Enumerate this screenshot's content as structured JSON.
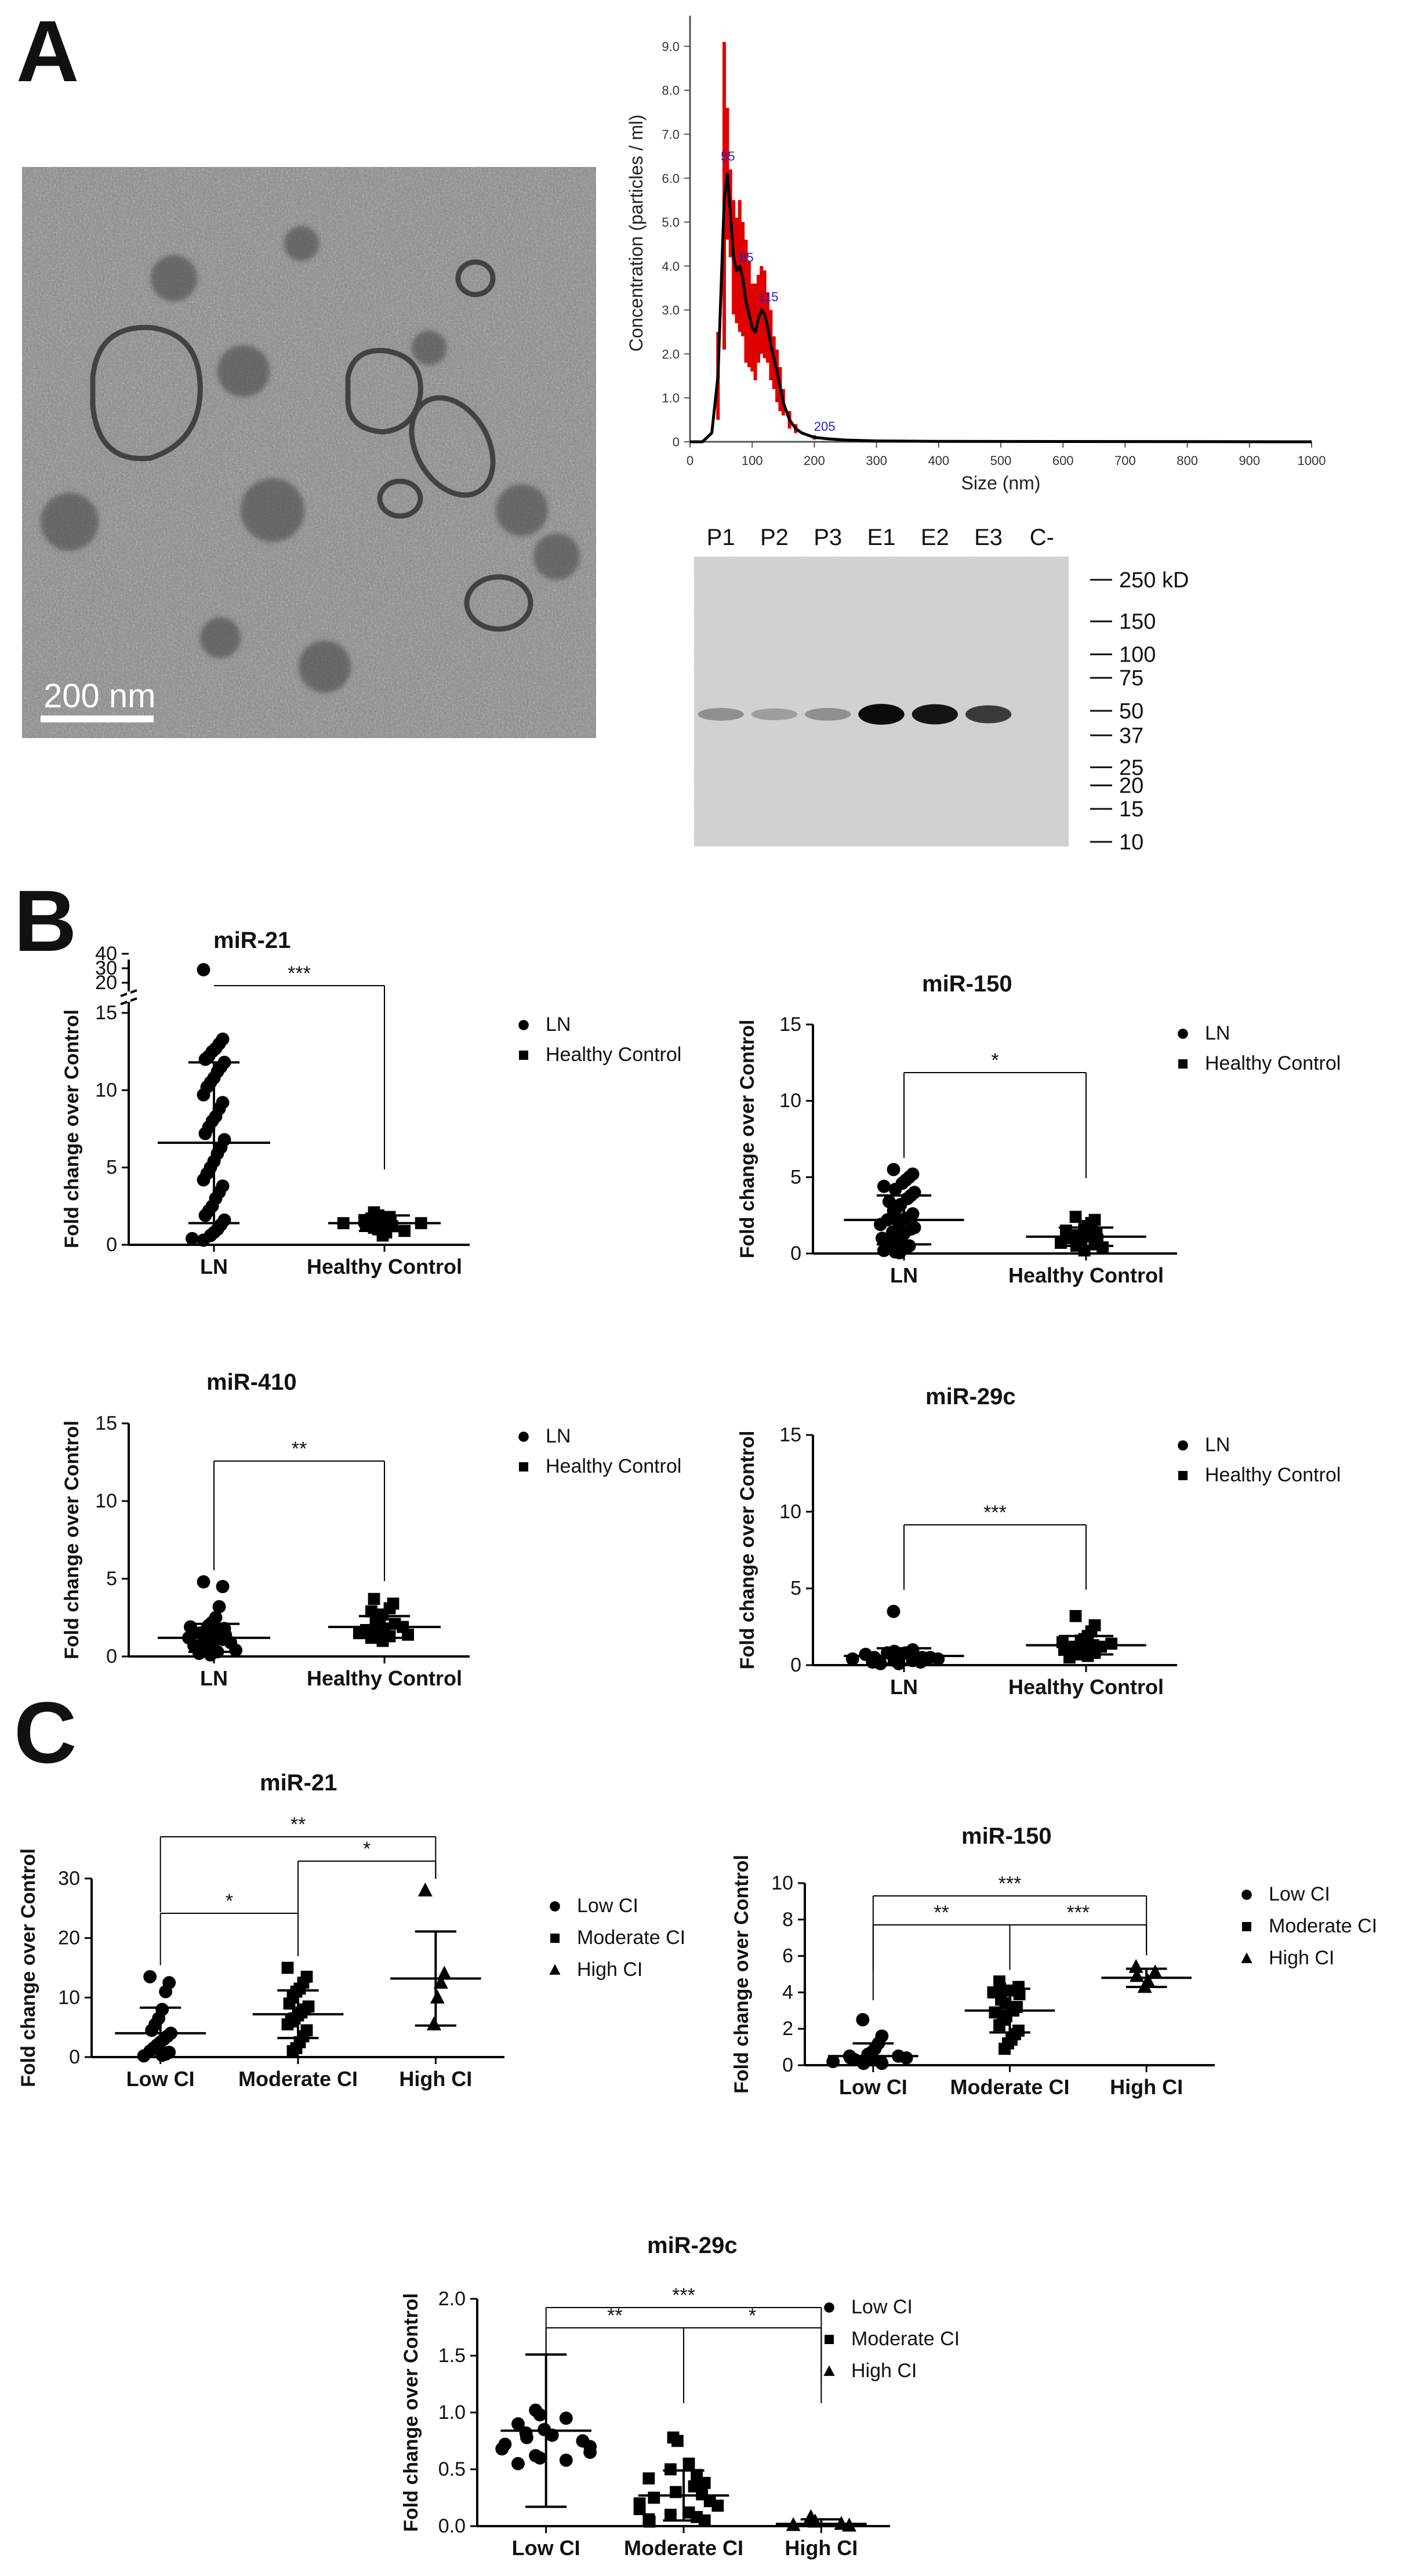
{
  "panels": {
    "A": "A",
    "B": "B",
    "C": "C"
  },
  "tem": {
    "scale_label": "200 nm"
  },
  "western_blot": {
    "lanes": [
      "P1",
      "P2",
      "P3",
      "E1",
      "E2",
      "E3",
      "C-"
    ],
    "markers": [
      "250 kD",
      "150",
      "100",
      "75",
      "50",
      "37",
      "25",
      "20",
      "15",
      "10"
    ],
    "marker_values": [
      250,
      150,
      100,
      75,
      50,
      37,
      25,
      20,
      15,
      10
    ],
    "band_intensity": [
      0.3,
      0.22,
      0.3,
      1.0,
      0.95,
      0.75,
      0.0
    ]
  },
  "chart_data": [
    {
      "id": "nta",
      "type": "line",
      "title": "",
      "xlabel": "Size (nm)",
      "ylabel": "Concentration (particles / ml)",
      "xlim": [
        0,
        1000
      ],
      "ylim": [
        0,
        9.5
      ],
      "xticks": [
        0,
        100,
        200,
        300,
        400,
        500,
        600,
        700,
        800,
        900,
        1000
      ],
      "yticks": [
        0.0,
        1.0,
        2.0,
        3.0,
        4.0,
        5.0,
        6.0,
        7.0,
        8.0,
        9.0
      ],
      "ytick_labels": [
        "0",
        "1.0",
        "2.0",
        "3.0",
        "4.0",
        "5.0",
        "6.0",
        "7.0",
        "8.0",
        "9.0"
      ],
      "line_x": [
        0,
        20,
        35,
        45,
        50,
        55,
        60,
        65,
        70,
        75,
        80,
        85,
        90,
        95,
        100,
        105,
        110,
        115,
        120,
        125,
        130,
        140,
        150,
        160,
        170,
        180,
        190,
        200,
        220,
        250,
        300,
        400,
        1000
      ],
      "line_y": [
        0,
        0,
        0.2,
        1.5,
        3.5,
        5.5,
        6.1,
        5.2,
        4.2,
        3.9,
        4.0,
        3.7,
        3.2,
        2.9,
        2.6,
        2.5,
        2.8,
        3.0,
        2.9,
        2.6,
        2.2,
        1.6,
        0.9,
        0.5,
        0.3,
        0.2,
        0.15,
        0.1,
        0.07,
        0.04,
        0.02,
        0.01,
        0.0
      ],
      "error_bars": [
        {
          "x": 45,
          "y": 1.5,
          "err": 1.0
        },
        {
          "x": 55,
          "y": 5.6,
          "err": 3.5
        },
        {
          "x": 60,
          "y": 6.1,
          "err": 1.5
        },
        {
          "x": 65,
          "y": 5.2,
          "err": 1.0
        },
        {
          "x": 70,
          "y": 4.2,
          "err": 1.3
        },
        {
          "x": 75,
          "y": 3.9,
          "err": 1.2
        },
        {
          "x": 80,
          "y": 4.0,
          "err": 1.5
        },
        {
          "x": 85,
          "y": 3.7,
          "err": 1.3
        },
        {
          "x": 90,
          "y": 3.2,
          "err": 1.4
        },
        {
          "x": 95,
          "y": 2.9,
          "err": 1.2
        },
        {
          "x": 100,
          "y": 2.6,
          "err": 1.0
        },
        {
          "x": 105,
          "y": 2.5,
          "err": 1.1
        },
        {
          "x": 110,
          "y": 2.8,
          "err": 1.0
        },
        {
          "x": 115,
          "y": 3.0,
          "err": 1.0
        },
        {
          "x": 120,
          "y": 2.9,
          "err": 1.0
        },
        {
          "x": 125,
          "y": 2.6,
          "err": 0.8
        },
        {
          "x": 130,
          "y": 2.2,
          "err": 0.8
        },
        {
          "x": 135,
          "y": 1.8,
          "err": 0.6
        },
        {
          "x": 140,
          "y": 1.5,
          "err": 0.6
        },
        {
          "x": 145,
          "y": 1.2,
          "err": 0.5
        },
        {
          "x": 150,
          "y": 0.9,
          "err": 0.3
        },
        {
          "x": 160,
          "y": 0.5,
          "err": 0.2
        },
        {
          "x": 170,
          "y": 0.3,
          "err": 0.1
        },
        {
          "x": 200,
          "y": 0.1,
          "err": 0.05
        }
      ],
      "peak_labels": [
        {
          "x": 55,
          "y": 6.4,
          "label": "55"
        },
        {
          "x": 85,
          "y": 4.1,
          "label": "85"
        },
        {
          "x": 115,
          "y": 3.2,
          "label": "115"
        },
        {
          "x": 205,
          "y": 0.25,
          "label": "205"
        }
      ]
    },
    {
      "id": "b1",
      "type": "scatter",
      "title": "miR-21",
      "ylabel": "Fold change over Control",
      "categories": [
        "LN",
        "Healthy Control"
      ],
      "ylim": [
        0,
        40
      ],
      "axis_break": true,
      "yticks": [
        0,
        5,
        10,
        15,
        20,
        30,
        40
      ],
      "legend": [
        "LN",
        "Healthy Control"
      ],
      "groups": [
        {
          "name": "LN",
          "marker": "circle",
          "mean": 6.6,
          "sd": 5.2,
          "points": [
            29,
            13.3,
            13.0,
            12.7,
            12.5,
            12.2,
            12.0,
            11.8,
            11.5,
            11.2,
            10.8,
            10.5,
            10.2,
            9.7,
            9.2,
            8.8,
            8.3,
            8.0,
            7.6,
            7.2,
            6.8,
            6.3,
            5.9,
            5.4,
            5.0,
            4.6,
            4.2,
            3.8,
            3.4,
            3.0,
            2.5,
            2.2,
            1.9,
            1.6,
            1.3,
            1.0,
            0.8,
            0.6,
            0.4,
            0.3
          ]
        },
        {
          "name": "Healthy Control",
          "marker": "square",
          "mean": 1.4,
          "sd": 0.5,
          "points": [
            2.1,
            1.9,
            1.8,
            1.7,
            1.6,
            1.6,
            1.5,
            1.5,
            1.4,
            1.4,
            1.3,
            1.3,
            1.2,
            1.1,
            1.0,
            0.9,
            0.8,
            0.6
          ]
        }
      ],
      "comparisons": [
        {
          "from": 0,
          "to": 1,
          "label": "***"
        }
      ]
    },
    {
      "id": "b2",
      "type": "scatter",
      "title": "miR-150",
      "ylabel": "Fold change over Control",
      "categories": [
        "LN",
        "Healthy Control"
      ],
      "ylim": [
        0,
        15
      ],
      "yticks": [
        0,
        5,
        10,
        15
      ],
      "legend": [
        "LN",
        "Healthy Control"
      ],
      "groups": [
        {
          "name": "LN",
          "marker": "circle",
          "mean": 2.2,
          "sd": 1.6,
          "points": [
            5.5,
            5.2,
            5.0,
            4.8,
            4.6,
            4.4,
            4.2,
            4.0,
            3.8,
            3.6,
            3.4,
            3.2,
            3.0,
            2.8,
            2.6,
            2.5,
            2.3,
            2.2,
            2.0,
            1.9,
            1.7,
            1.6,
            1.4,
            1.3,
            1.1,
            1.0,
            0.8,
            0.7,
            0.5,
            0.4,
            0.3,
            0.2,
            0.1,
            0.05
          ]
        },
        {
          "name": "Healthy Control",
          "marker": "square",
          "mean": 1.1,
          "sd": 0.6,
          "points": [
            2.4,
            2.2,
            2.0,
            1.8,
            1.6,
            1.5,
            1.4,
            1.3,
            1.2,
            1.1,
            1.0,
            0.9,
            0.8,
            0.7,
            0.6,
            0.5,
            0.4,
            0.2
          ]
        }
      ],
      "comparisons": [
        {
          "from": 0,
          "to": 1,
          "label": "*"
        }
      ]
    },
    {
      "id": "b3",
      "type": "scatter",
      "title": "miR-410",
      "ylabel": "Fold change over Control",
      "categories": [
        "LN",
        "Healthy Control"
      ],
      "ylim": [
        0,
        15
      ],
      "yticks": [
        0,
        5,
        10,
        15
      ],
      "legend": [
        "LN",
        "Healthy Control"
      ],
      "groups": [
        {
          "name": "LN",
          "marker": "circle",
          "mean": 1.2,
          "sd": 0.9,
          "points": [
            4.8,
            4.5,
            3.2,
            2.5,
            2.2,
            2.0,
            1.9,
            1.8,
            1.7,
            1.6,
            1.5,
            1.4,
            1.3,
            1.2,
            1.1,
            1.0,
            0.9,
            0.8,
            0.7,
            0.6,
            0.5,
            0.4,
            0.3,
            0.2,
            0.1
          ]
        },
        {
          "name": "Healthy Control",
          "marker": "square",
          "mean": 1.9,
          "sd": 0.7,
          "points": [
            3.7,
            3.4,
            3.1,
            2.9,
            2.7,
            2.5,
            2.3,
            2.1,
            2.0,
            1.9,
            1.8,
            1.7,
            1.6,
            1.5,
            1.4,
            1.3,
            1.2,
            1.0
          ]
        }
      ],
      "comparisons": [
        {
          "from": 0,
          "to": 1,
          "label": "**"
        }
      ]
    },
    {
      "id": "b4",
      "type": "scatter",
      "title": "miR-29c",
      "ylabel": "Fold change over Control",
      "categories": [
        "LN",
        "Healthy Control"
      ],
      "ylim": [
        0,
        15
      ],
      "yticks": [
        0,
        5,
        10,
        15
      ],
      "legend": [
        "LN",
        "Healthy Control"
      ],
      "groups": [
        {
          "name": "LN",
          "marker": "circle",
          "mean": 0.6,
          "sd": 0.5,
          "points": [
            3.5,
            1.0,
            0.9,
            0.8,
            0.8,
            0.7,
            0.7,
            0.6,
            0.6,
            0.5,
            0.5,
            0.5,
            0.4,
            0.4,
            0.3,
            0.3,
            0.2,
            0.2,
            0.1,
            0.1
          ]
        },
        {
          "name": "Healthy Control",
          "marker": "square",
          "mean": 1.3,
          "sd": 0.6,
          "points": [
            3.2,
            2.6,
            2.2,
            1.9,
            1.7,
            1.6,
            1.5,
            1.4,
            1.3,
            1.2,
            1.2,
            1.1,
            1.0,
            0.9,
            0.8,
            0.7,
            0.6,
            0.5
          ]
        }
      ],
      "comparisons": [
        {
          "from": 0,
          "to": 1,
          "label": "***"
        }
      ]
    },
    {
      "id": "c1",
      "type": "scatter",
      "title": "miR-21",
      "ylabel": "Fold change over Control",
      "categories": [
        "Low CI",
        "Moderate CI",
        "High CI"
      ],
      "ylim": [
        0,
        30
      ],
      "yticks": [
        0,
        10,
        20,
        30
      ],
      "legend": [
        "Low CI",
        "Moderate CI",
        "High CI"
      ],
      "groups": [
        {
          "name": "Low CI",
          "marker": "circle",
          "mean": 4.0,
          "sd": 4.3,
          "points": [
            13.5,
            12.5,
            11.0,
            8.0,
            6.5,
            5.5,
            4.5,
            4.0,
            3.5,
            3.0,
            2.5,
            2.0,
            1.5,
            1.0,
            0.8,
            0.5,
            0.3,
            0.2
          ]
        },
        {
          "name": "Moderate CI",
          "marker": "square",
          "mean": 7.2,
          "sd": 4.0,
          "points": [
            15.0,
            13.5,
            12.5,
            11.5,
            11.0,
            10.0,
            9.0,
            8.5,
            8.0,
            7.5,
            7.0,
            6.5,
            6.0,
            5.5,
            4.5,
            3.5,
            2.5,
            1.5,
            1.0
          ]
        },
        {
          "name": "High CI",
          "marker": "triangle",
          "mean": 13.2,
          "sd": 7.9,
          "points": [
            28.0,
            14.0,
            12.5,
            10.0,
            5.5
          ]
        }
      ],
      "comparisons": [
        {
          "from": 0,
          "to": 1,
          "label": "*",
          "level": 0
        },
        {
          "from": 1,
          "to": 2,
          "label": "*",
          "level": 1
        },
        {
          "from": 0,
          "to": 2,
          "label": "**",
          "level": 2
        }
      ]
    },
    {
      "id": "c2",
      "type": "scatter",
      "title": "miR-150",
      "ylabel": "Fold change over Control",
      "categories": [
        "Low CI",
        "Moderate CI",
        "High CI"
      ],
      "ylim": [
        0,
        10
      ],
      "yticks": [
        0,
        2,
        4,
        6,
        8,
        10
      ],
      "legend": [
        "Low CI",
        "Moderate CI",
        "High CI"
      ],
      "groups": [
        {
          "name": "Low CI",
          "marker": "circle",
          "mean": 0.5,
          "sd": 0.7,
          "points": [
            2.5,
            1.6,
            1.2,
            0.9,
            0.7,
            0.6,
            0.5,
            0.5,
            0.4,
            0.4,
            0.3,
            0.3,
            0.2,
            0.2,
            0.1,
            0.1
          ]
        },
        {
          "name": "Moderate CI",
          "marker": "square",
          "mean": 3.0,
          "sd": 1.2,
          "points": [
            4.6,
            4.3,
            4.2,
            4.1,
            4.0,
            3.9,
            3.6,
            3.4,
            3.2,
            3.0,
            2.9,
            2.7,
            2.5,
            2.2,
            1.9,
            1.7,
            1.4,
            1.2,
            0.9
          ]
        },
        {
          "name": "High CI",
          "marker": "triangle",
          "mean": 4.8,
          "sd": 0.5,
          "points": [
            5.4,
            5.1,
            4.9,
            4.6,
            4.3
          ]
        }
      ],
      "comparisons": [
        {
          "from": 0,
          "to": 1,
          "label": "**",
          "level": 0
        },
        {
          "from": 1,
          "to": 2,
          "label": "***",
          "level": 1
        },
        {
          "from": 0,
          "to": 2,
          "label": "***",
          "level": 2
        }
      ]
    },
    {
      "id": "c3",
      "type": "scatter",
      "title": "miR-29c",
      "ylabel": "Fold change over Control",
      "categories": [
        "Low CI",
        "Moderate CI",
        "High CI"
      ],
      "ylim": [
        0,
        2.0
      ],
      "yticks": [
        0.0,
        0.5,
        1.0,
        1.5,
        2.0
      ],
      "ytick_labels": [
        "0.0",
        "0.5",
        "1.0",
        "1.5",
        "2.0"
      ],
      "legend": [
        "Low CI",
        "Moderate CI",
        "High CI"
      ],
      "groups": [
        {
          "name": "Low CI",
          "marker": "circle",
          "mean": 0.84,
          "sd": 0.67,
          "points": [
            1.02,
            0.98,
            0.95,
            0.9,
            0.85,
            0.82,
            0.8,
            0.78,
            0.75,
            0.72,
            0.7,
            0.68,
            0.65,
            0.62,
            0.6,
            0.58,
            0.55
          ]
        },
        {
          "name": "Moderate CI",
          "marker": "square",
          "mean": 0.27,
          "sd": 0.22,
          "points": [
            0.78,
            0.75,
            0.55,
            0.5,
            0.45,
            0.42,
            0.38,
            0.35,
            0.3,
            0.28,
            0.25,
            0.22,
            0.2,
            0.18,
            0.15,
            0.12,
            0.1,
            0.08,
            0.06,
            0.05,
            0.04
          ]
        },
        {
          "name": "High CI",
          "marker": "triangle",
          "mean": 0.02,
          "sd": 0.04,
          "points": [
            0.08,
            0.04,
            0.02,
            0.01,
            0.005
          ]
        }
      ],
      "comparisons": [
        {
          "from": 0,
          "to": 1,
          "label": "**",
          "level": 0
        },
        {
          "from": 1,
          "to": 2,
          "label": "*",
          "level": 1
        },
        {
          "from": 0,
          "to": 2,
          "label": "***",
          "level": 2
        }
      ]
    }
  ]
}
